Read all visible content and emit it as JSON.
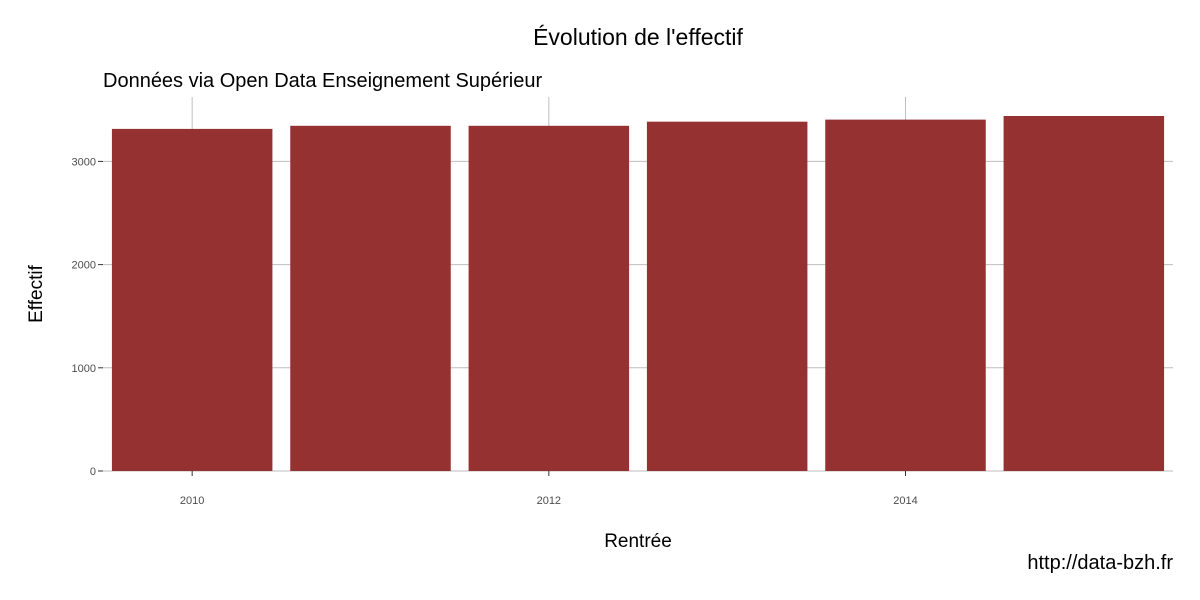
{
  "chart_data": {
    "type": "bar",
    "title": "Évolution de l'effectif",
    "subtitle": "Données via Open Data Enseignement Supérieur",
    "xlabel": "Rentrée",
    "ylabel": "Effectif",
    "caption": "http://data-bzh.fr",
    "x": [
      2010,
      2011,
      2012,
      2013,
      2014,
      2015
    ],
    "values": [
      3315,
      3345,
      3345,
      3385,
      3405,
      3440
    ],
    "xlim": [
      2009.5,
      2015.5
    ],
    "ylim": [
      0,
      3440
    ],
    "x_ticks": [
      2010,
      2012,
      2014
    ],
    "x_tick_labels": [
      "2010",
      "2012",
      "2014"
    ],
    "y_ticks": [
      0,
      1000,
      2000,
      3000
    ],
    "y_tick_labels": [
      "0",
      "1000",
      "2000",
      "3000"
    ],
    "bar_color": "#963132",
    "grid_color": "#bebebe",
    "grid": true,
    "legend": "none"
  }
}
